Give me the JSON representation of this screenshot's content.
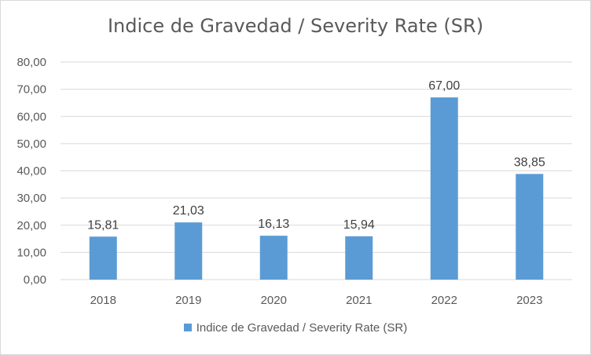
{
  "colors": {
    "bar": "#5b9bd5",
    "grid": "#d9d9d9",
    "axis_text": "#595959",
    "label_text": "#404040"
  },
  "chart_data": {
    "type": "bar",
    "title": "Indice de Gravedad / Severity Rate (SR)",
    "categories": [
      "2018",
      "2019",
      "2020",
      "2021",
      "2022",
      "2023"
    ],
    "series": [
      {
        "name": "Indice de Gravedad / Severity Rate (SR)",
        "values": [
          15.81,
          21.03,
          16.13,
          15.94,
          67.0,
          38.85
        ],
        "labels": [
          "15,81",
          "21,03",
          "16,13",
          "15,94",
          "67,00",
          "38,85"
        ]
      }
    ],
    "ylim": [
      0,
      80
    ],
    "yticks": [
      "0,00",
      "10,00",
      "20,00",
      "30,00",
      "40,00",
      "50,00",
      "60,00",
      "70,00",
      "80,00"
    ],
    "grid": true,
    "legend_position": "bottom"
  }
}
